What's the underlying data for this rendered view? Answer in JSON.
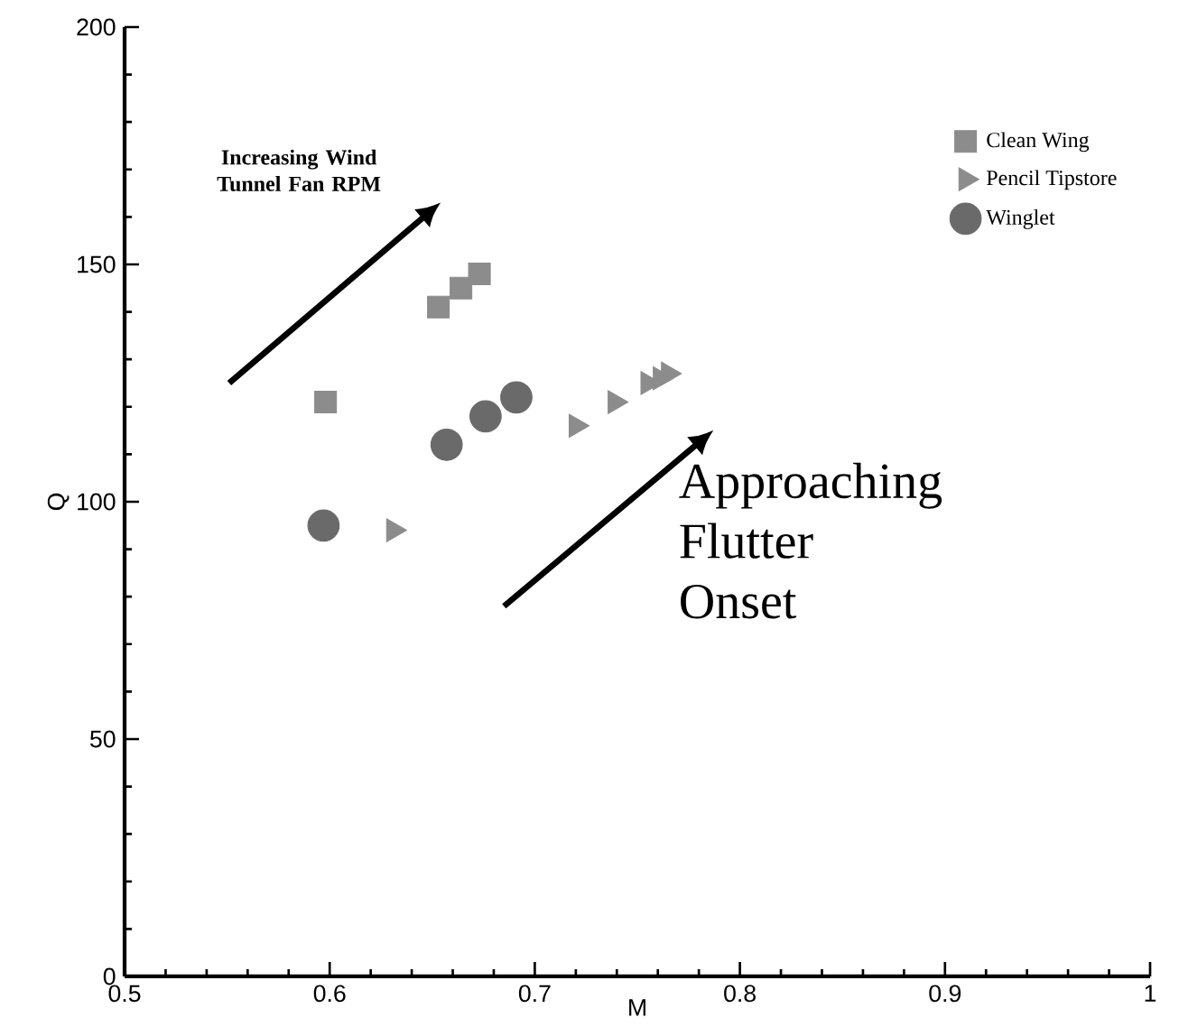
{
  "chart_data": {
    "type": "scatter",
    "xlabel": "M",
    "ylabel": "Q",
    "xlim": [
      0.5,
      1
    ],
    "ylim": [
      0,
      200
    ],
    "xticks": [
      0.5,
      0.6,
      0.7,
      0.8,
      0.9,
      {
        "value": 1,
        "label": "1"
      }
    ],
    "yticks": [
      0,
      50,
      100,
      150,
      200
    ],
    "legend": "top right",
    "grid": false,
    "annotations": [
      "Increasing Wind Tunnel Fan RPM",
      "Approaching Flutter Onset"
    ],
    "series": [
      {
        "name": "Clean Wing",
        "color": "#8c8c8c",
        "marker": "square",
        "x": [
          0.598,
          0.653,
          0.664,
          0.673
        ],
        "values": [
          121,
          141,
          145,
          148
        ]
      },
      {
        "name": "Pencil Tipstore",
        "color": "#8c8c8c",
        "marker": "triangle",
        "x": [
          0.631,
          0.72,
          0.739,
          0.755,
          0.761,
          0.765
        ],
        "values": [
          94,
          116,
          121,
          125,
          126,
          127
        ]
      },
      {
        "name": "Winglet",
        "color": "#6a6a6a",
        "marker": "circle",
        "x": [
          0.597,
          0.657,
          0.676,
          0.691
        ],
        "values": [
          95,
          112,
          118,
          122
        ]
      }
    ]
  }
}
